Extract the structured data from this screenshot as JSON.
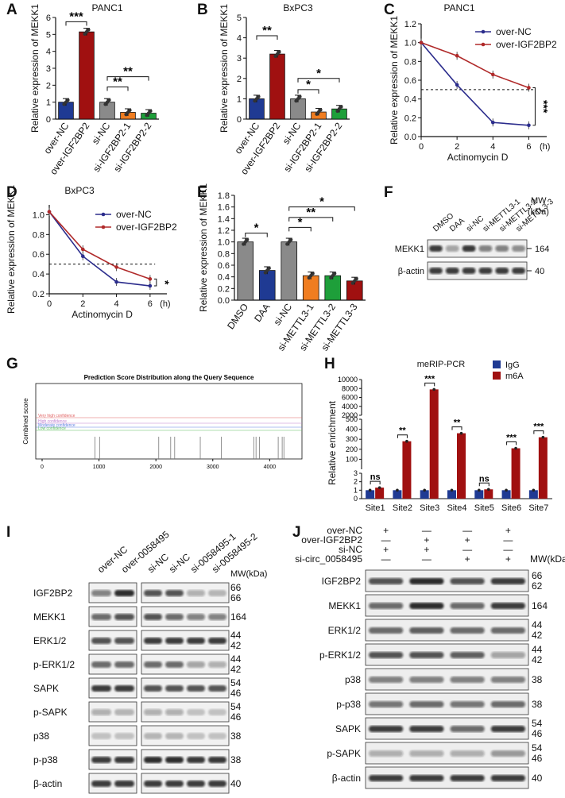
{
  "panels": {
    "A": {
      "letter": "A",
      "title": "PANC1"
    },
    "B": {
      "letter": "B",
      "title": "BxPC3"
    },
    "C": {
      "letter": "C",
      "title": "PANC1"
    },
    "D": {
      "letter": "D",
      "title": "BxPC3"
    },
    "E": {
      "letter": "E"
    },
    "F": {
      "letter": "F"
    },
    "G": {
      "letter": "G",
      "chart_title": "Prediction Score Distribution along the Query Sequence"
    },
    "H": {
      "letter": "H",
      "title": "meRIP-PCR"
    },
    "I": {
      "letter": "I"
    },
    "J": {
      "letter": "J"
    }
  },
  "colors": {
    "navy": "#1f3a93",
    "darkred": "#a01010",
    "gray": "#8a8a8a",
    "orange": "#f07d20",
    "green": "#1e9f3a",
    "blueline": "#2b2c8c",
    "redline": "#b02a2a"
  },
  "chart_data": [
    {
      "id": "A",
      "type": "bar",
      "title": "PANC1",
      "ylabel": "Relative expression of MEKK1",
      "ylim": [
        0,
        6
      ],
      "yticks": [
        "0",
        "1",
        "2",
        "3",
        "4",
        "5",
        "6"
      ],
      "categories": [
        "over-NC",
        "over-IGF2BP2",
        "si-NC",
        "si-IGF2BP2-1",
        "si-IGF2BP2-2"
      ],
      "values": [
        1.0,
        5.15,
        1.0,
        0.4,
        0.35
      ],
      "sig": [
        {
          "label": "***"
        },
        {
          "label": "**"
        },
        {
          "label": "**"
        }
      ]
    },
    {
      "id": "B",
      "type": "bar",
      "title": "BxPC3",
      "ylabel": "Relative expression of MEKK1",
      "ylim": [
        0,
        5
      ],
      "yticks": [
        "0",
        "1",
        "2",
        "3",
        "4",
        "5"
      ],
      "categories": [
        "over-NC",
        "over-IGF2BP2",
        "si-NC",
        "si-IGF2BP2-1",
        "si-IGF2BP2-2"
      ],
      "values": [
        1.0,
        3.2,
        1.0,
        0.35,
        0.5
      ],
      "sig": [
        {
          "label": "**"
        },
        {
          "label": "*"
        },
        {
          "label": "*"
        }
      ]
    },
    {
      "id": "C",
      "type": "line",
      "title": "PANC1",
      "ylabel": "Relative expression of MEKK1",
      "xlabel": "Actinomycin D",
      "xunit": "(h)",
      "xticks": [
        "0",
        "2",
        "4",
        "6"
      ],
      "yticks": [
        "0.0",
        "0.2",
        "0.4",
        "0.6",
        "0.8",
        "1.0",
        "1.2"
      ],
      "ylim": [
        0,
        1.2
      ],
      "series": [
        {
          "name": "over-NC",
          "x": [
            0,
            2,
            4,
            6
          ],
          "values": [
            1.0,
            0.55,
            0.15,
            0.12
          ]
        },
        {
          "name": "over-IGF2BP2",
          "x": [
            0,
            2,
            4,
            6
          ],
          "values": [
            1.0,
            0.86,
            0.66,
            0.52
          ]
        }
      ],
      "sig": "***"
    },
    {
      "id": "D",
      "type": "line",
      "title": "BxPC3",
      "ylabel": "Relative expression of MEKK1",
      "xlabel": "Actinomycin D",
      "xunit": "(h)",
      "xticks": [
        "0",
        "2",
        "4",
        "6"
      ],
      "yticks": [
        "0.2",
        "0.4",
        "0.6",
        "0.8",
        "1.0"
      ],
      "ylim": [
        0.2,
        1.1
      ],
      "series": [
        {
          "name": "over-NC",
          "x": [
            0,
            2,
            4,
            6
          ],
          "values": [
            1.03,
            0.58,
            0.32,
            0.28
          ]
        },
        {
          "name": "over-IGF2BP2",
          "x": [
            0,
            2,
            4,
            6
          ],
          "values": [
            1.03,
            0.65,
            0.47,
            0.35
          ]
        }
      ],
      "sig": "*"
    },
    {
      "id": "E",
      "type": "bar",
      "ylabel": "Relative expression of MEKK1",
      "ylim": [
        0,
        1.8
      ],
      "yticks": [
        "0.0",
        "0.2",
        "0.4",
        "0.6",
        "0.8",
        "1.0",
        "1.2",
        "1.4",
        "1.6",
        "1.8"
      ],
      "categories": [
        "DMSO",
        "DAA",
        "si-NC",
        "si-METTL3-1",
        "si-METTL3-2",
        "si-METTL3-3"
      ],
      "values": [
        1.0,
        0.51,
        1.0,
        0.42,
        0.42,
        0.33
      ],
      "sig": [
        {
          "label": "*"
        },
        {
          "label": "*"
        },
        {
          "label": "**"
        },
        {
          "label": "*"
        }
      ]
    },
    {
      "id": "G",
      "type": "line",
      "title": "Prediction Score Distribution along the Query Sequence",
      "ylabel": "Combined score",
      "xticks": [
        "0",
        "1000",
        "2000",
        "3000",
        "4000"
      ],
      "thresholds": [
        "Very high confidence",
        "High confidence",
        "Moderate confidence",
        "Low confidence"
      ]
    },
    {
      "id": "H",
      "type": "bar",
      "title": "meRIP-PCR",
      "ylabel": "Relative enrichment",
      "categories": [
        "Site1",
        "Site2",
        "Site3",
        "Site4",
        "Site5",
        "Site6",
        "Site7"
      ],
      "series": [
        {
          "name": "IgG",
          "values": [
            1,
            1,
            1,
            1,
            1,
            1,
            1
          ]
        },
        {
          "name": "m6A",
          "values": [
            1.3,
            280,
            7800,
            360,
            1.1,
            210,
            320
          ]
        }
      ],
      "yticks": [
        "0",
        "1",
        "2",
        "3",
        "100",
        "200",
        "300",
        "400",
        "500",
        "2000",
        "4000",
        "6000",
        "8000",
        "10000"
      ],
      "sig": [
        "ns",
        "**",
        "***",
        "**",
        "ns",
        "***",
        "***"
      ]
    }
  ],
  "F": {
    "lanes": [
      "DMSO",
      "DAA",
      "si-NC",
      "si-METTL3-1",
      "si-METTL3-2",
      "si-METTL3-3"
    ],
    "rows": [
      "MEKK1",
      "β-actin"
    ],
    "mw_header": "MW\n(kDa)",
    "mw_title": "MW",
    "mw_unit": "(kDa)",
    "mw": [
      "164",
      "40"
    ]
  },
  "I": {
    "lanes_left": [
      "over-NC",
      "over-0058495"
    ],
    "lanes_right": [
      "si-NC",
      "si-NC",
      "si-0058495-1",
      "si-0058495-2"
    ],
    "mw_header": "MW(kDa)",
    "rows": [
      {
        "name": "IGF2BP2",
        "mw": "66\n66",
        "mw1": "66",
        "mw2": "66"
      },
      {
        "name": "MEKK1",
        "mw": "164"
      },
      {
        "name": "ERK1/2",
        "mw1": "44",
        "mw2": "42"
      },
      {
        "name": "p-ERK1/2",
        "mw1": "44",
        "mw2": "42"
      },
      {
        "name": "SAPK",
        "mw1": "54",
        "mw2": "46"
      },
      {
        "name": "p-SAPK",
        "mw1": "54",
        "mw2": "46"
      },
      {
        "name": "p38",
        "mw": "38"
      },
      {
        "name": "p-p38",
        "mw": "38"
      },
      {
        "name": "β-actin",
        "mw": "40"
      }
    ]
  },
  "J": {
    "conditions": [
      "over-NC",
      "over-IGF2BP2",
      "si-NC",
      "si-circ_0058495"
    ],
    "signs": [
      [
        "+",
        "—",
        "—",
        "+"
      ],
      [
        "—",
        "+",
        "+",
        "—"
      ],
      [
        "+",
        "+",
        "—",
        "—"
      ],
      [
        "—",
        "—",
        "+",
        "+"
      ]
    ],
    "mw_header": "MW(kDa)",
    "rows": [
      {
        "name": "IGF2BP2",
        "mw1": "66",
        "mw2": "62"
      },
      {
        "name": "MEKK1",
        "mw": "164"
      },
      {
        "name": "ERK1/2",
        "mw1": "44",
        "mw2": "42"
      },
      {
        "name": "p-ERK1/2",
        "mw1": "44",
        "mw2": "42"
      },
      {
        "name": "p38",
        "mw": "38"
      },
      {
        "name": "p-p38",
        "mw": "38"
      },
      {
        "name": "SAPK",
        "mw1": "54",
        "mw2": "46"
      },
      {
        "name": "p-SAPK",
        "mw1": "54",
        "mw2": "46"
      },
      {
        "name": "β-actin",
        "mw": "40"
      }
    ]
  }
}
